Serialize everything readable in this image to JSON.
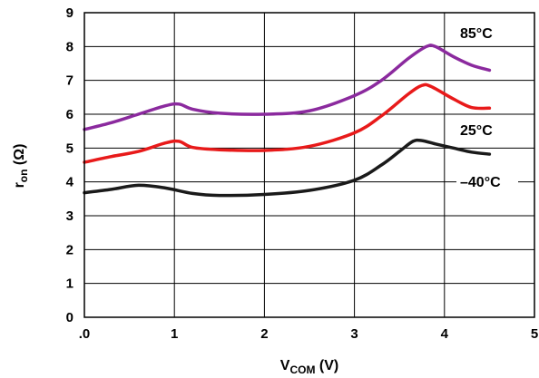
{
  "chart_data": {
    "type": "line",
    "xlabel": {
      "main": "V",
      "sub": "COM",
      "unit": " (V)"
    },
    "ylabel": {
      "main": "r",
      "sub": "on",
      "unit": " (Ω)"
    },
    "xlim": [
      0,
      5
    ],
    "ylim": [
      0,
      9
    ],
    "x_ticks": [
      ".0",
      "1",
      "2",
      "3",
      "4",
      "5"
    ],
    "y_ticks": [
      "0",
      "1",
      "2",
      "3",
      "4",
      "5",
      "6",
      "7",
      "8",
      "9"
    ],
    "grid": true,
    "series": [
      {
        "name": "85°C",
        "color": "#8b2a9e",
        "x": [
          0,
          0.3,
          0.6,
          0.9,
          1.05,
          1.2,
          1.5,
          2.0,
          2.5,
          3.0,
          3.3,
          3.6,
          3.8,
          3.9,
          4.1,
          4.3,
          4.5
        ],
        "y": [
          5.55,
          5.75,
          6.0,
          6.25,
          6.3,
          6.15,
          6.03,
          6.0,
          6.1,
          6.55,
          7.0,
          7.65,
          8.0,
          8.0,
          7.7,
          7.45,
          7.3
        ]
      },
      {
        "name": "25°C",
        "color": "#e81a1a",
        "x": [
          0,
          0.3,
          0.6,
          0.9,
          1.05,
          1.2,
          1.5,
          2.0,
          2.5,
          3.0,
          3.3,
          3.6,
          3.75,
          3.85,
          4.1,
          4.3,
          4.5
        ],
        "y": [
          4.58,
          4.75,
          4.9,
          5.15,
          5.2,
          5.02,
          4.95,
          4.93,
          5.05,
          5.45,
          5.95,
          6.6,
          6.85,
          6.82,
          6.45,
          6.2,
          6.18
        ]
      },
      {
        "name": "–40°C",
        "color": "#1a1a1a",
        "x": [
          0,
          0.3,
          0.6,
          0.9,
          1.2,
          1.5,
          2.0,
          2.5,
          3.0,
          3.3,
          3.5,
          3.65,
          3.75,
          3.9,
          4.1,
          4.3,
          4.5
        ],
        "y": [
          3.68,
          3.78,
          3.9,
          3.82,
          3.66,
          3.6,
          3.63,
          3.75,
          4.05,
          4.5,
          4.9,
          5.2,
          5.22,
          5.12,
          5.0,
          4.88,
          4.82
        ]
      }
    ]
  }
}
